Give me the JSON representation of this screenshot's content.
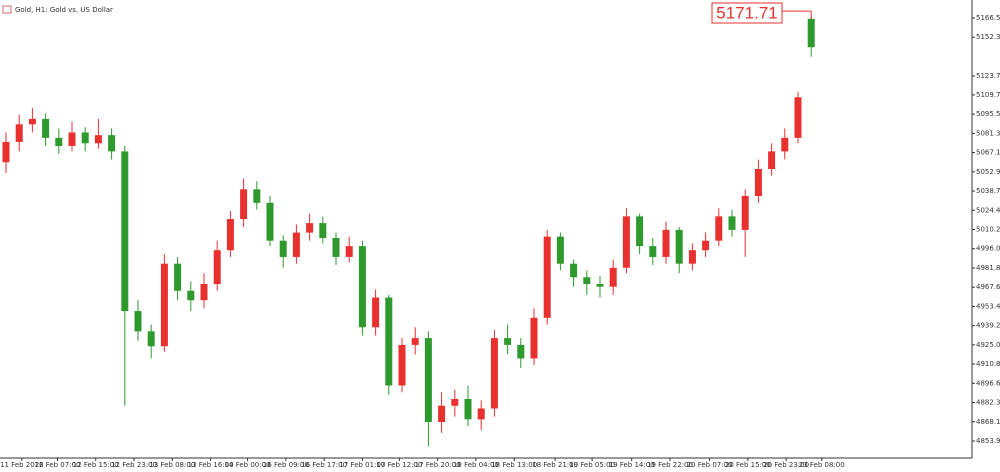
{
  "chart_data": {
    "type": "candlestick",
    "title": "Gold, H1:  Gold vs. US Dollar",
    "up_color": "#e8302f",
    "down_color": "#2e9a2e",
    "open": [
      5060,
      5075,
      5088,
      5092,
      5078,
      5072,
      5082,
      5074,
      5080,
      5068,
      4950,
      4935,
      4924,
      4985,
      4965,
      4958,
      4970,
      4995,
      5018,
      5040,
      5030,
      5002,
      4990,
      5008,
      5015,
      5004,
      4990,
      4998,
      4938,
      4960,
      4895,
      4925,
      4930,
      4868,
      4880,
      4885,
      4870,
      4878,
      4930,
      4925,
      4915,
      4945,
      5005,
      4985,
      4975,
      4970,
      4968,
      4982,
      5020,
      4998,
      4990,
      5010,
      4985,
      4995,
      5002,
      5020,
      5010,
      5035,
      5055,
      5068,
      5078,
      5166
    ],
    "high": [
      5082,
      5095,
      5100,
      5096,
      5085,
      5090,
      5086,
      5092,
      5085,
      5072,
      4958,
      4940,
      4992,
      4990,
      4972,
      4978,
      5002,
      5024,
      5048,
      5046,
      5035,
      5006,
      5014,
      5022,
      5020,
      5008,
      5005,
      5002,
      4966,
      4962,
      4930,
      4938,
      4935,
      4890,
      4892,
      4895,
      4884,
      4936,
      4940,
      4930,
      4952,
      5010,
      5008,
      4988,
      4980,
      4976,
      4988,
      5026,
      5022,
      5004,
      5016,
      5012,
      5000,
      5008,
      5026,
      5025,
      5040,
      5062,
      5074,
      5085,
      5112,
      5168
    ],
    "low": [
      5052,
      5068,
      5082,
      5072,
      5066,
      5068,
      5068,
      5070,
      5062,
      4880,
      4928,
      4915,
      4920,
      4958,
      4950,
      4952,
      4965,
      4990,
      5012,
      5025,
      4998,
      4982,
      4985,
      5002,
      5000,
      4984,
      4986,
      4932,
      4932,
      4888,
      4890,
      4918,
      4850,
      4860,
      4872,
      4865,
      4862,
      4872,
      4918,
      4908,
      4910,
      4940,
      4980,
      4968,
      4962,
      4960,
      4962,
      4978,
      4992,
      4984,
      4985,
      4978,
      4980,
      4990,
      4998,
      5005,
      4990,
      5030,
      5050,
      5062,
      5074,
      5138
    ],
    "close": [
      5075,
      5088,
      5092,
      5078,
      5072,
      5082,
      5074,
      5080,
      5068,
      4950,
      4935,
      4924,
      4985,
      4965,
      4958,
      4970,
      4995,
      5018,
      5040,
      5030,
      5002,
      4990,
      5008,
      5015,
      5004,
      4990,
      4998,
      4938,
      4960,
      4895,
      4925,
      4930,
      4868,
      4880,
      4885,
      4870,
      4878,
      4930,
      4925,
      4915,
      4945,
      5005,
      4985,
      4975,
      4970,
      4968,
      4982,
      5020,
      4998,
      4990,
      5010,
      4985,
      4995,
      5002,
      5020,
      5010,
      5035,
      5055,
      5068,
      5078,
      5108,
      5145
    ],
    "last_price": 5171.71,
    "ylim": [
      4841.4,
      5179.9
    ],
    "yticks": [
      5166.59,
      5152.38,
      5123.75,
      5109.75,
      5095.54,
      5081.33,
      5067.12,
      5052.91,
      {
        "value": 5038.7,
        "label": "5038.70"
      },
      5024.49,
      5010.28,
      4996.07,
      4981.86,
      4967.65,
      4953.44,
      4939.23,
      4925.02,
      4910.81,
      {
        "value": 4896.6,
        "label": "4896.60"
      },
      4882.39,
      4868.18,
      4853.97
    ],
    "xticks": [
      {
        "value": 1.2,
        "label": "11 Feb 2026"
      },
      {
        "value": 3.9,
        "label": "12 Feb 07:00"
      },
      {
        "value": 6.8,
        "label": "12 Feb 15:00"
      },
      {
        "value": 9.7,
        "label": "12 Feb 23:00"
      },
      {
        "value": 12.6,
        "label": "13 Feb 08:00"
      },
      {
        "value": 15.5,
        "label": "13 Feb 16:00"
      },
      {
        "value": 18.3,
        "label": "14 Feb 00:00"
      },
      {
        "value": 21.2,
        "label": "16 Feb 09:00"
      },
      {
        "value": 24.1,
        "label": "16 Feb 17:00"
      },
      {
        "value": 27.0,
        "label": "17 Feb 01:00"
      },
      {
        "value": 29.8,
        "label": "17 Feb 12:00"
      },
      {
        "value": 32.7,
        "label": "17 Feb 20:00"
      },
      {
        "value": 35.6,
        "label": "18 Feb 04:00"
      },
      {
        "value": 38.5,
        "label": "18 Feb 13:00"
      },
      {
        "value": 41.6,
        "label": "18 Feb 21:00"
      },
      {
        "value": 44.4,
        "label": "19 Feb 05:00"
      },
      {
        "value": 47.4,
        "label": "19 Feb 14:00"
      },
      {
        "value": 50.3,
        "label": "19 Feb 22:00"
      },
      {
        "value": 53.3,
        "label": "20 Feb 07:00"
      },
      {
        "value": 56.2,
        "label": "20 Feb 15:00"
      },
      {
        "value": 59.1,
        "label": "20 Feb 23:00"
      },
      {
        "value": 61.8,
        "label": "23 Feb 08:00"
      }
    ]
  }
}
